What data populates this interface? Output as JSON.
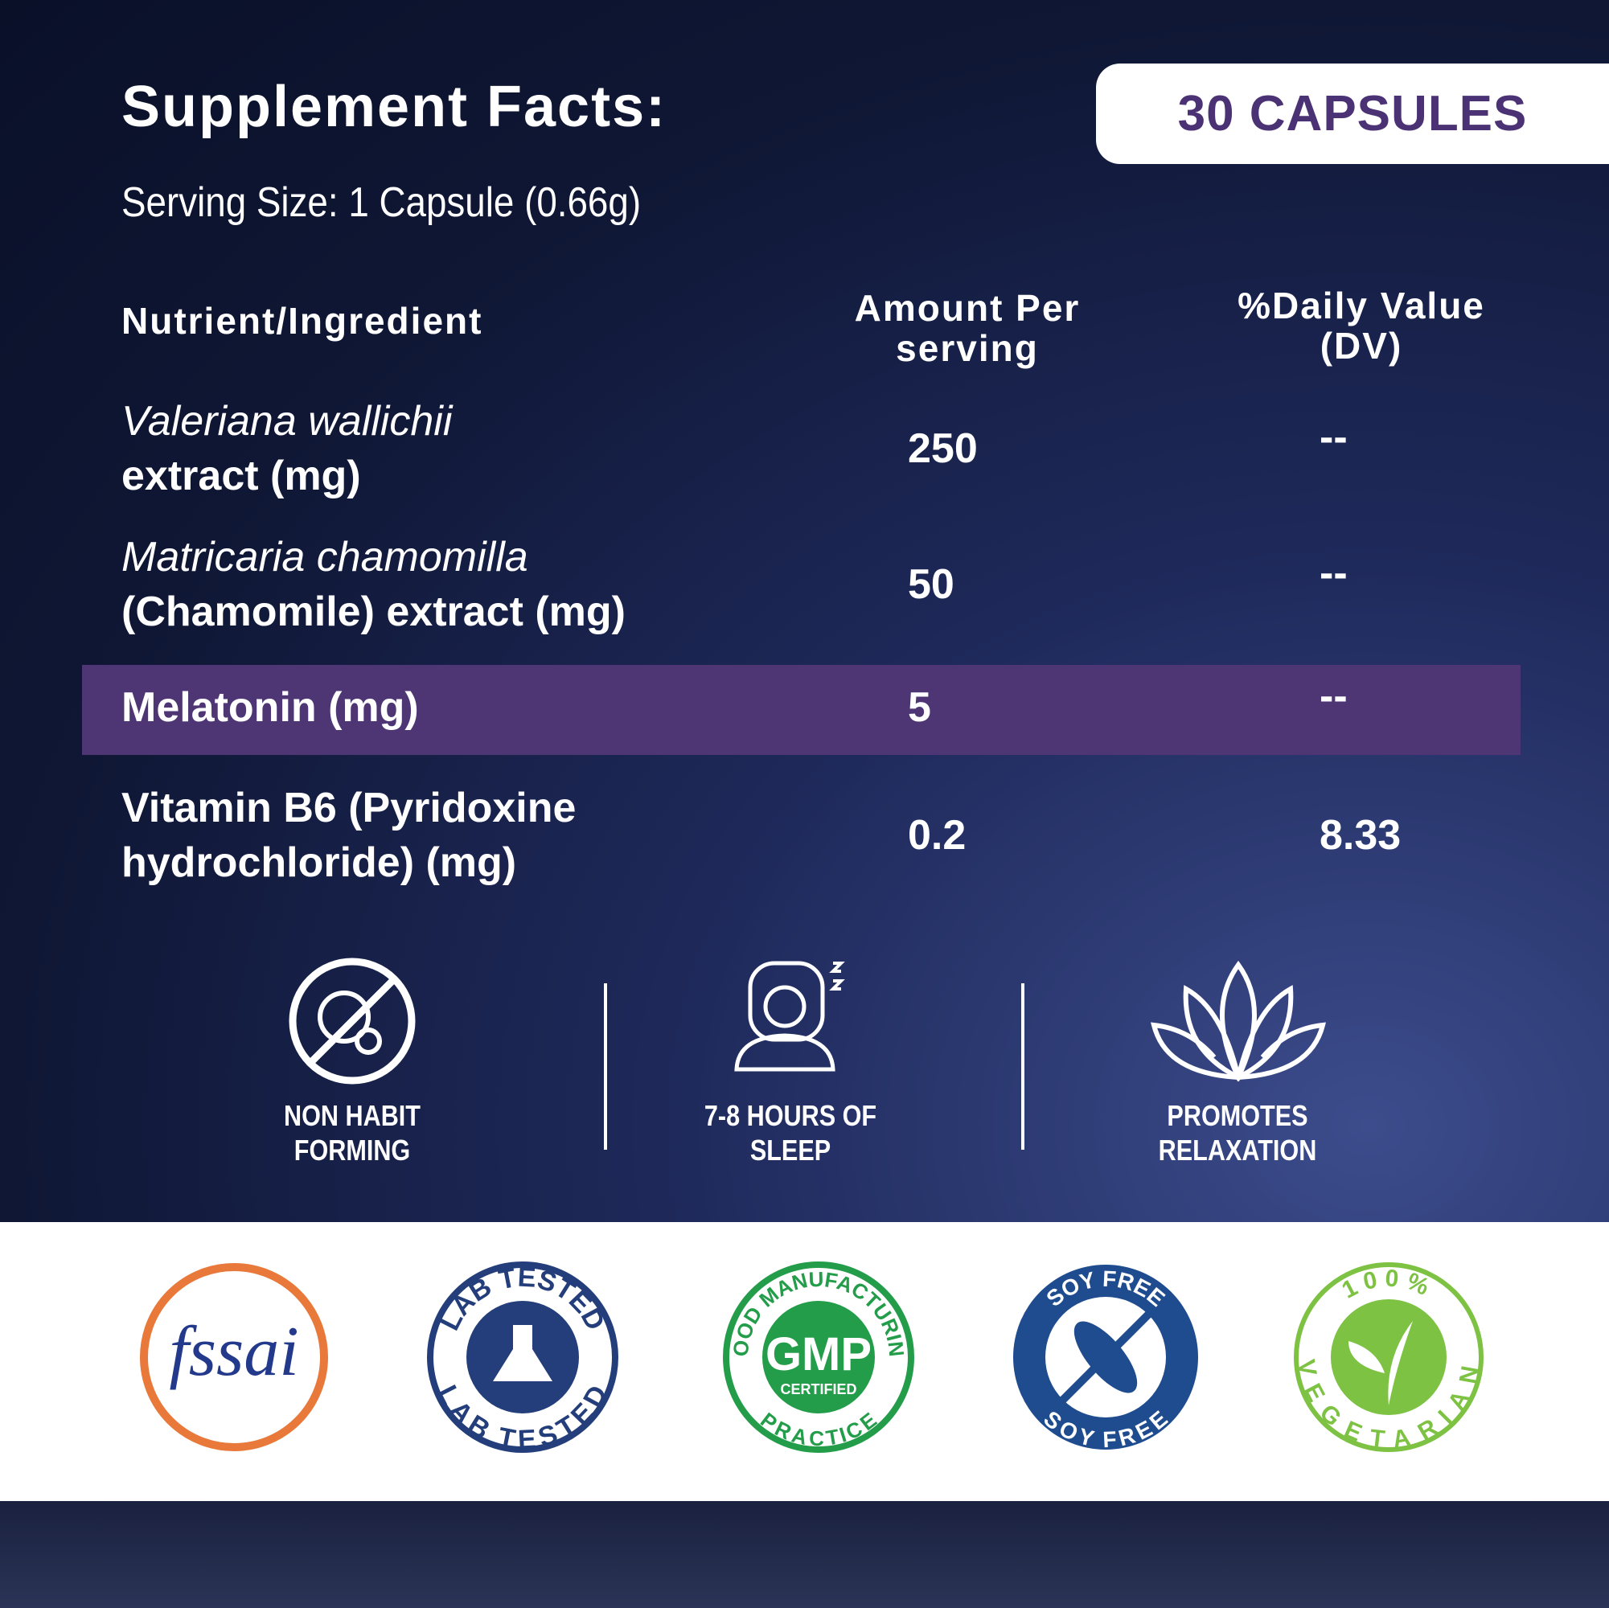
{
  "header": {
    "title": "Supplement Facts:",
    "badge": "30 CAPSULES",
    "serving_size": "Serving Size: 1 Capsule (0.66g)"
  },
  "table": {
    "columns": [
      "Nutrient/Ingredient",
      "Amount Per serving",
      "%Daily Value (DV)"
    ],
    "rows": [
      {
        "italic": "Valeriana wallichii",
        "name": "extract (mg)",
        "amount": 250,
        "dv": "--"
      },
      {
        "italic": "Matricaria chamomilla",
        "name": "(Chamomile) extract (mg)",
        "amount": 50,
        "dv": "--"
      },
      {
        "name": "Melatonin (mg)",
        "amount": 5,
        "dv": "--",
        "highlight": true
      },
      {
        "name": "Vitamin B6 (Pyridoxine hydrochloride) (mg)",
        "amount": 0.2,
        "dv": 8.33
      }
    ]
  },
  "features": [
    "NON HABIT FORMING",
    "7-8 HOURS OF SLEEP",
    "PROMOTES RELAXATION"
  ],
  "certifications": {
    "fssai": "fssai",
    "lab": "LAB TESTED",
    "gmp": {
      "top": "GOOD MANUFACTURING",
      "bottom": "PRACTICE",
      "mark": "GMP",
      "sub": "CERTIFIED"
    },
    "soy": "SOY FREE",
    "veg": {
      "top": "100%",
      "bottom": "VEGETARIAN"
    }
  }
}
